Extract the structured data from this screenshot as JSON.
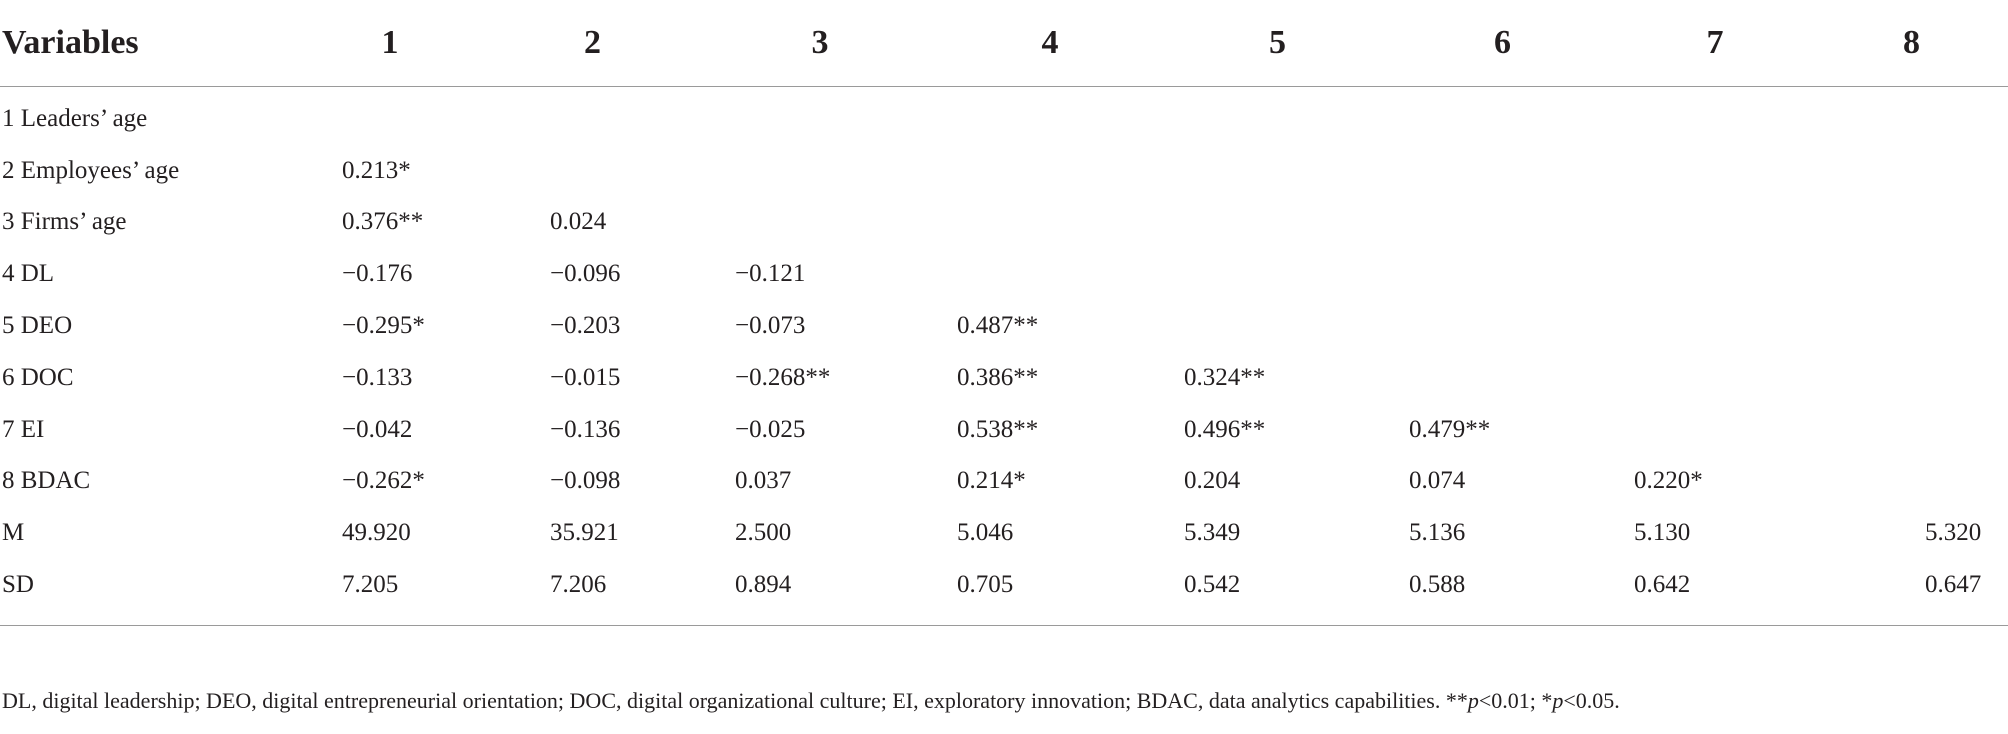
{
  "table": {
    "headers": [
      "Variables",
      "1",
      "2",
      "3",
      "4",
      "5",
      "6",
      "7",
      "8"
    ],
    "rows": [
      {
        "label": "1 Leaders’ age",
        "cells": [
          "",
          "",
          "",
          "",
          "",
          "",
          "",
          ""
        ]
      },
      {
        "label": "2 Employees’ age",
        "cells": [
          "0.213*",
          "",
          "",
          "",
          "",
          "",
          "",
          ""
        ]
      },
      {
        "label": "3 Firms’ age",
        "cells": [
          "0.376**",
          "0.024",
          "",
          "",
          "",
          "",
          "",
          ""
        ]
      },
      {
        "label": "4 DL",
        "cells": [
          "−0.176",
          "−0.096",
          "−0.121",
          "",
          "",
          "",
          "",
          ""
        ]
      },
      {
        "label": "5 DEO",
        "cells": [
          "−0.295*",
          "−0.203",
          "−0.073",
          "0.487**",
          "",
          "",
          "",
          ""
        ]
      },
      {
        "label": "6 DOC",
        "cells": [
          "−0.133",
          "−0.015",
          "−0.268**",
          "0.386**",
          "0.324**",
          "",
          "",
          ""
        ]
      },
      {
        "label": "7 EI",
        "cells": [
          "−0.042",
          "−0.136",
          "−0.025",
          "0.538**",
          "0.496**",
          "0.479**",
          "",
          ""
        ]
      },
      {
        "label": "8 BDAC",
        "cells": [
          "−0.262*",
          "−0.098",
          "0.037",
          "0.214*",
          "0.204",
          "0.074",
          "0.220*",
          ""
        ]
      },
      {
        "label": "M",
        "cells": [
          "49.920",
          "35.921",
          "2.500",
          "5.046",
          "5.349",
          "5.136",
          "5.130",
          "5.320"
        ]
      },
      {
        "label": "SD",
        "cells": [
          "7.205",
          "7.206",
          "0.894",
          "0.705",
          "0.542",
          "0.588",
          "0.642",
          "0.647"
        ]
      }
    ]
  },
  "footnote": {
    "text": "DL, digital leadership; DEO, digital entrepreneurial orientation; DOC, digital organizational culture; EI, exploratory innovation; BDAC, data analytics capabilities. **",
    "p1": "p",
    "mid": "<0.01; *",
    "p2": "p",
    "end": "<0.05."
  }
}
